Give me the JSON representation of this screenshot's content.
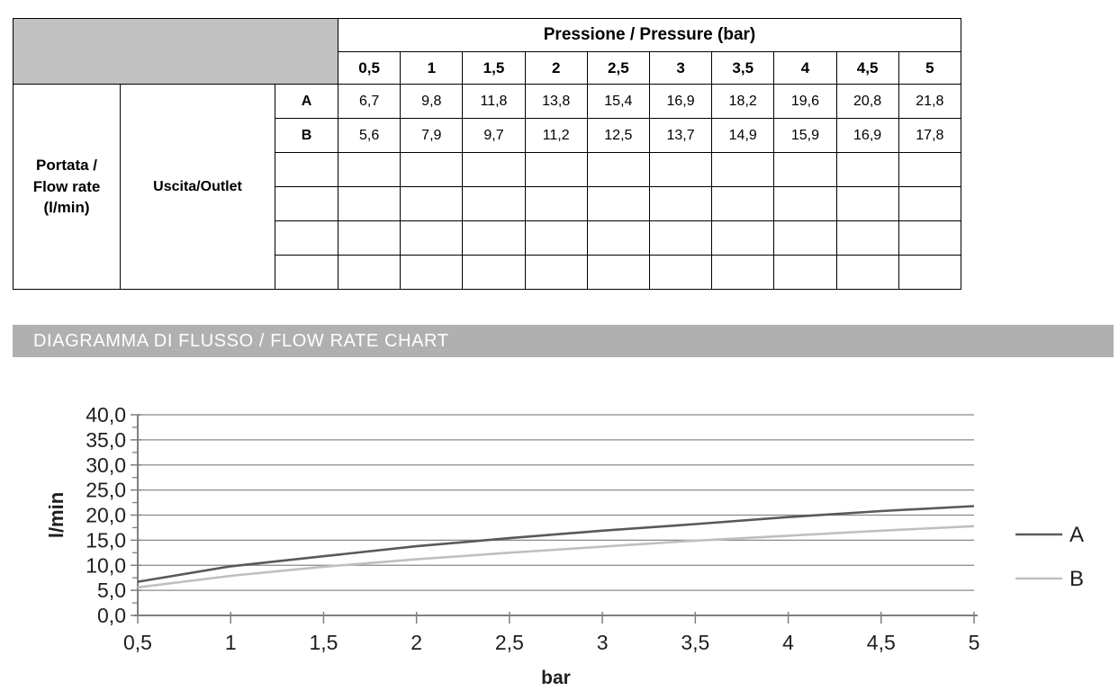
{
  "table": {
    "header": {
      "pressure_title": "Pressione / Pressure (bar)",
      "pressure_values": [
        "0,5",
        "1",
        "1,5",
        "2",
        "2,5",
        "3",
        "3,5",
        "4",
        "4,5",
        "5"
      ]
    },
    "row_group": {
      "flow_label_lines": [
        "Portata /",
        "Flow rate",
        "(l/min)"
      ],
      "outlet_label": "Uscita/Outlet"
    },
    "rows": [
      {
        "label": "A",
        "values": [
          "6,7",
          "9,8",
          "11,8",
          "13,8",
          "15,4",
          "16,9",
          "18,2",
          "19,6",
          "20,8",
          "21,8"
        ]
      },
      {
        "label": "B",
        "values": [
          "5,6",
          "7,9",
          "9,7",
          "11,2",
          "12,5",
          "13,7",
          "14,9",
          "15,9",
          "16,9",
          "17,8"
        ]
      },
      {
        "label": "",
        "values": [
          "",
          "",
          "",
          "",
          "",
          "",
          "",
          "",
          "",
          ""
        ]
      },
      {
        "label": "",
        "values": [
          "",
          "",
          "",
          "",
          "",
          "",
          "",
          "",
          "",
          ""
        ]
      },
      {
        "label": "",
        "values": [
          "",
          "",
          "",
          "",
          "",
          "",
          "",
          "",
          "",
          ""
        ]
      },
      {
        "label": "",
        "values": [
          "",
          "",
          "",
          "",
          "",
          "",
          "",
          "",
          "",
          ""
        ]
      }
    ]
  },
  "banner": {
    "title": "DIAGRAMMA DI FLUSSO / FLOW RATE CHART"
  },
  "chart_data": {
    "type": "line",
    "x": [
      0.5,
      1,
      1.5,
      2,
      2.5,
      3,
      3.5,
      4,
      4.5,
      5
    ],
    "x_tick_labels": [
      "0,5",
      "1",
      "1,5",
      "2",
      "2,5",
      "3",
      "3,5",
      "4",
      "4,5",
      "5"
    ],
    "series": [
      {
        "name": "A",
        "values": [
          6.7,
          9.8,
          11.8,
          13.8,
          15.4,
          16.9,
          18.2,
          19.6,
          20.8,
          21.8
        ],
        "color": "#595959"
      },
      {
        "name": "B",
        "values": [
          5.6,
          7.9,
          9.7,
          11.2,
          12.5,
          13.7,
          14.9,
          15.9,
          16.9,
          17.8
        ],
        "color": "#bfbfbf"
      }
    ],
    "xlabel": "bar",
    "ylabel": "l/min",
    "ylim": [
      0,
      40
    ],
    "y_tick_step": 5,
    "y_minor_tick_step": 2.5,
    "y_tick_labels": [
      "0,0",
      "5,0",
      "10,0",
      "15,0",
      "20,0",
      "25,0",
      "30,0",
      "35,0",
      "40,0"
    ],
    "grid": "horizontal",
    "legend_position": "right"
  },
  "colors": {
    "table_header_gray": "#c1c1c1",
    "banner_gray": "#b0b0b0",
    "grid": "#898989",
    "axis": "#7f7f7f",
    "label_text": "#1f1f1f",
    "series_a": "#595959",
    "series_b": "#bfbfbf"
  }
}
